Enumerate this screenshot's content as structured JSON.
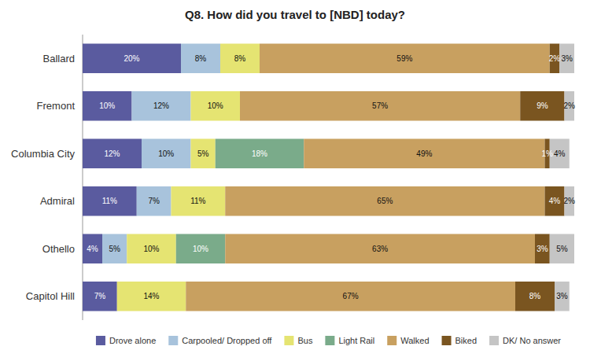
{
  "chart_data": {
    "type": "bar",
    "orientation": "horizontal",
    "stacked": true,
    "data_labels": true,
    "title": "Q8.  How did you travel to [NBD] today?",
    "categories": [
      "Ballard",
      "Fremont",
      "Columbia City",
      "Admiral",
      "Othello",
      "Capitol Hill"
    ],
    "series": [
      {
        "name": "Drove alone",
        "color": "#5a5b9f",
        "values": [
          20,
          10,
          12,
          11,
          4,
          7
        ],
        "value_labels": [
          "20%",
          "10%",
          "12%",
          "11%",
          "4%",
          "7%"
        ]
      },
      {
        "name": "Carpooled/ Dropped off",
        "color": "#a8c3dc",
        "values": [
          8,
          12,
          10,
          7,
          5,
          0
        ],
        "value_labels": [
          "8%",
          "12%",
          "10%",
          "7%",
          "5%",
          null
        ]
      },
      {
        "name": "Bus",
        "color": "#e5e472",
        "values": [
          8,
          10,
          5,
          11,
          10,
          14
        ],
        "value_labels": [
          "8%",
          "10%",
          "5%",
          "11%",
          "10%",
          "14%"
        ]
      },
      {
        "name": "Light Rail",
        "color": "#7aab8a",
        "values": [
          0,
          0,
          18,
          0,
          10,
          0
        ],
        "value_labels": [
          null,
          null,
          "18%",
          null,
          "10%",
          null
        ]
      },
      {
        "name": "Walked",
        "color": "#c8a060",
        "values": [
          59,
          57,
          49,
          65,
          63,
          67
        ],
        "value_labels": [
          "59%",
          "57%",
          "49%",
          "65%",
          "63%",
          "67%"
        ]
      },
      {
        "name": "Biked",
        "color": "#7a5520",
        "values": [
          2,
          9,
          1,
          4,
          3,
          8
        ],
        "value_labels": [
          "2%",
          "9%",
          "1%",
          "4%",
          "3%",
          "8%"
        ]
      },
      {
        "name": "DK/ No answer",
        "color": "#c5c5c5",
        "values": [
          3,
          2,
          4,
          2,
          5,
          3
        ],
        "value_labels": [
          "3%",
          "2%",
          "4%",
          "2%",
          "5%",
          "3%"
        ]
      }
    ],
    "xlim": [
      0,
      100
    ],
    "tick_labels": "y",
    "legend": "bottom"
  }
}
